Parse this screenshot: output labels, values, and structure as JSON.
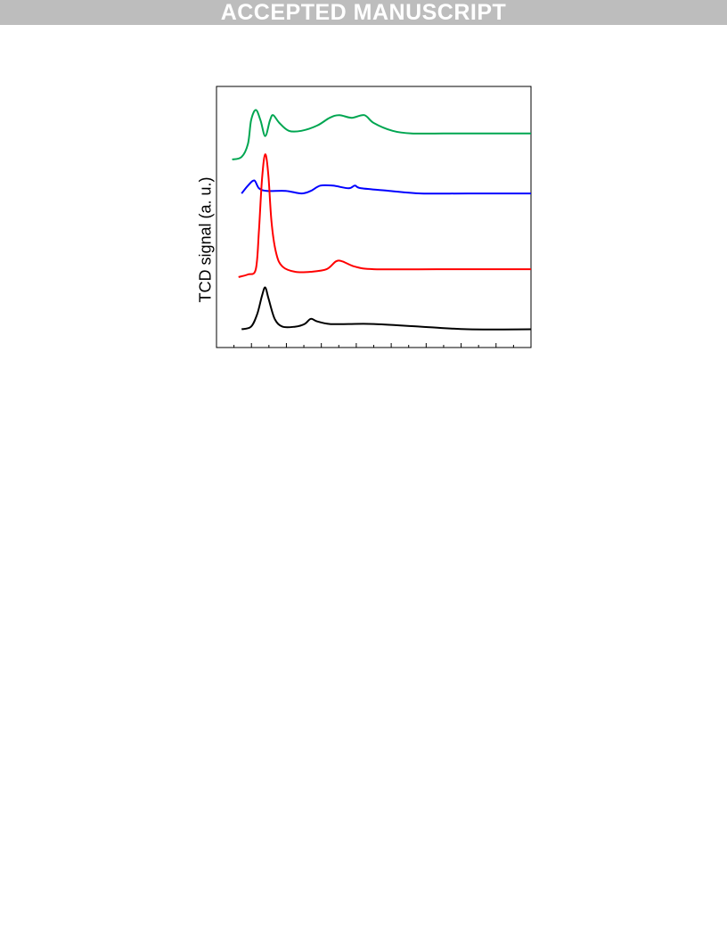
{
  "banner": {
    "text": "ACCEPTED MANUSCRIPT"
  },
  "colors": {
    "banner_bg": "#bdbdbd",
    "banner_text": "#ffffff"
  },
  "chart_data": {
    "type": "line",
    "title": "",
    "xlabel": "",
    "ylabel": "TCD signal (a. u.)",
    "x_tick_labels_visible": false,
    "y_tick_labels_visible": false,
    "grid": false,
    "legend": "none",
    "note": "",
    "series": [
      {
        "color": "#00a651",
        "points": [
          [
            0.05,
            0.28
          ],
          [
            0.08,
            0.27
          ],
          [
            0.1,
            0.22
          ],
          [
            0.11,
            0.13
          ],
          [
            0.125,
            0.09
          ],
          [
            0.14,
            0.13
          ],
          [
            0.155,
            0.19
          ],
          [
            0.17,
            0.13
          ],
          [
            0.18,
            0.11
          ],
          [
            0.2,
            0.14
          ],
          [
            0.23,
            0.17
          ],
          [
            0.27,
            0.17
          ],
          [
            0.32,
            0.15
          ],
          [
            0.36,
            0.12
          ],
          [
            0.39,
            0.11
          ],
          [
            0.43,
            0.12
          ],
          [
            0.47,
            0.11
          ],
          [
            0.5,
            0.14
          ],
          [
            0.56,
            0.17
          ],
          [
            0.62,
            0.18
          ],
          [
            0.72,
            0.18
          ],
          [
            0.85,
            0.18
          ],
          [
            1.0,
            0.18
          ]
        ]
      },
      {
        "color": "#0000ff",
        "points": [
          [
            0.08,
            0.41
          ],
          [
            0.1,
            0.38
          ],
          [
            0.12,
            0.36
          ],
          [
            0.135,
            0.39
          ],
          [
            0.16,
            0.4
          ],
          [
            0.22,
            0.4
          ],
          [
            0.27,
            0.41
          ],
          [
            0.3,
            0.4
          ],
          [
            0.33,
            0.38
          ],
          [
            0.37,
            0.38
          ],
          [
            0.42,
            0.39
          ],
          [
            0.44,
            0.38
          ],
          [
            0.46,
            0.39
          ],
          [
            0.55,
            0.4
          ],
          [
            0.65,
            0.41
          ],
          [
            0.8,
            0.41
          ],
          [
            1.0,
            0.41
          ]
        ]
      },
      {
        "color": "#ff0000",
        "points": [
          [
            0.07,
            0.73
          ],
          [
            0.1,
            0.72
          ],
          [
            0.125,
            0.7
          ],
          [
            0.135,
            0.55
          ],
          [
            0.145,
            0.35
          ],
          [
            0.155,
            0.26
          ],
          [
            0.165,
            0.34
          ],
          [
            0.175,
            0.52
          ],
          [
            0.19,
            0.64
          ],
          [
            0.21,
            0.69
          ],
          [
            0.25,
            0.71
          ],
          [
            0.3,
            0.71
          ],
          [
            0.35,
            0.7
          ],
          [
            0.38,
            0.67
          ],
          [
            0.4,
            0.67
          ],
          [
            0.44,
            0.69
          ],
          [
            0.5,
            0.7
          ],
          [
            0.7,
            0.7
          ],
          [
            1.0,
            0.7
          ]
        ]
      },
      {
        "color": "#000000",
        "points": [
          [
            0.08,
            0.93
          ],
          [
            0.11,
            0.92
          ],
          [
            0.13,
            0.87
          ],
          [
            0.145,
            0.8
          ],
          [
            0.155,
            0.77
          ],
          [
            0.165,
            0.81
          ],
          [
            0.185,
            0.89
          ],
          [
            0.21,
            0.92
          ],
          [
            0.25,
            0.92
          ],
          [
            0.28,
            0.91
          ],
          [
            0.3,
            0.89
          ],
          [
            0.32,
            0.9
          ],
          [
            0.36,
            0.91
          ],
          [
            0.42,
            0.91
          ],
          [
            0.5,
            0.91
          ],
          [
            0.65,
            0.92
          ],
          [
            0.8,
            0.93
          ],
          [
            1.0,
            0.93
          ]
        ]
      }
    ]
  }
}
